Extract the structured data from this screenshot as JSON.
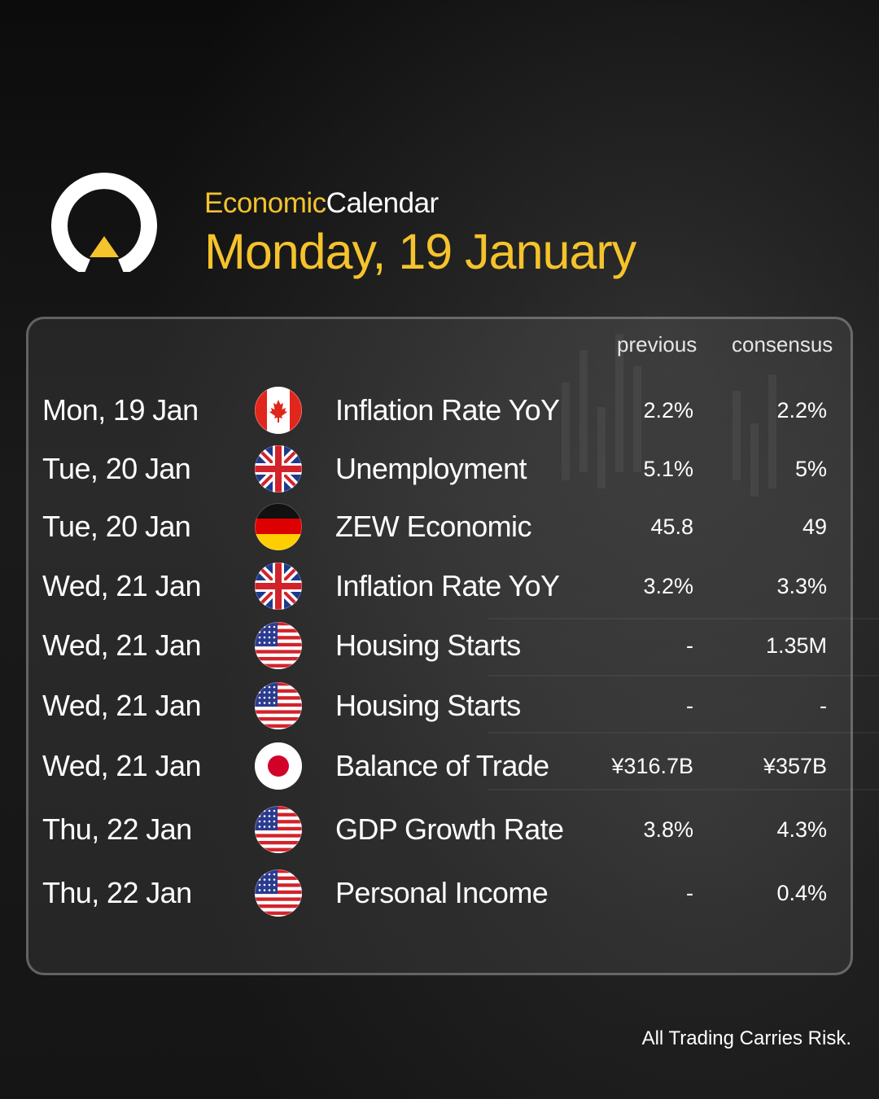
{
  "header": {
    "subtitle_part1": "Economic",
    "subtitle_part2": "Calendar",
    "date_title": "Monday, 19 January"
  },
  "table": {
    "columns": {
      "previous": "previous",
      "consensus": "consensus"
    },
    "rows": [
      {
        "date": "Mon, 19 Jan",
        "country_flag": "canada-flag-icon",
        "event": "Inflation Rate YoY",
        "previous": "2.2%",
        "consensus": "2.2%"
      },
      {
        "date": "Tue, 20 Jan",
        "country_flag": "uk-flag-icon",
        "event": "Unemployment",
        "previous": "5.1%",
        "consensus": "5%"
      },
      {
        "date": "Tue, 20 Jan",
        "country_flag": "germany-flag-icon",
        "event": "ZEW Economic",
        "previous": "45.8",
        "consensus": "49"
      },
      {
        "date": "Wed, 21 Jan",
        "country_flag": "uk-flag-icon",
        "event": "Inflation Rate YoY",
        "previous": "3.2%",
        "consensus": "3.3%"
      },
      {
        "date": "Wed, 21 Jan",
        "country_flag": "us-flag-icon",
        "event": "Housing Starts",
        "previous": "-",
        "consensus": "1.35M"
      },
      {
        "date": "Wed, 21 Jan",
        "country_flag": "us-flag-icon",
        "event": "Housing Starts",
        "previous": "-",
        "consensus": "-"
      },
      {
        "date": "Wed, 21 Jan",
        "country_flag": "japan-flag-icon",
        "event": "Balance of Trade",
        "previous": "¥316.7B",
        "consensus": "¥357B"
      },
      {
        "date": "Thu, 22 Jan",
        "country_flag": "us-flag-icon",
        "event": "GDP Growth Rate",
        "previous": "3.8%",
        "consensus": "4.3%"
      },
      {
        "date": "Thu, 22 Jan",
        "country_flag": "us-flag-icon",
        "event": "Personal Income",
        "previous": "-",
        "consensus": "0.4%"
      }
    ]
  },
  "footer": {
    "disclaimer": "All Trading Carries Risk."
  },
  "colors": {
    "accent": "#f5c32b",
    "background": "#141414",
    "text": "#ffffff"
  }
}
